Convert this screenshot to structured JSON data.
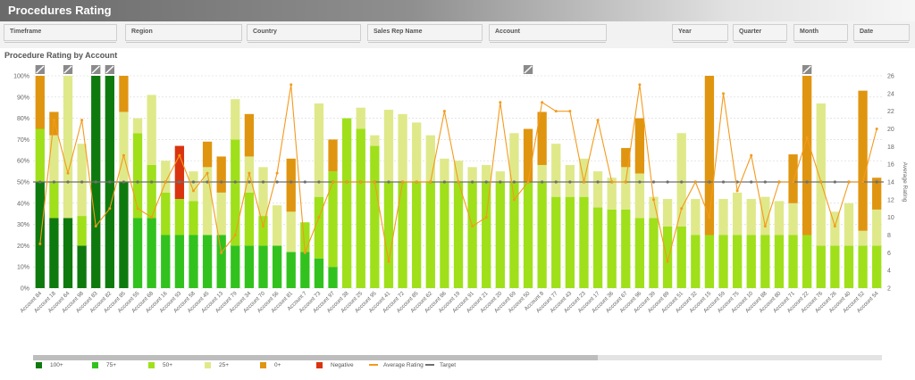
{
  "header": {
    "title": "Procedures Rating"
  },
  "filters": [
    "Timeframe",
    "Region",
    "Country",
    "Sales Rep Name",
    "Account",
    "Year",
    "Quarter",
    "Month",
    "Date"
  ],
  "chart_title": "Procedure Rating by Account",
  "colors": {
    "c100": "#0e7a0e",
    "c75": "#32c21e",
    "c50": "#9fe01a",
    "c25": "#dfe98a",
    "c0": "#e09510",
    "neg": "#d9340f",
    "avg": "#f49a1c",
    "target": "#6f6f6f",
    "grid": "#d6d6d6",
    "text": "#666666"
  },
  "chart_data": {
    "type": "bar",
    "stacked": true,
    "categories": [
      "Account 84",
      "Account 18",
      "Account 64",
      "Account 98",
      "Account 83",
      "Account 82",
      "Account 85",
      "Account 55",
      "Account 68",
      "Account 16",
      "Account 93",
      "Account 58",
      "Account 45",
      "Account 13",
      "Account 79",
      "Account 34",
      "Account 70",
      "Account 56",
      "Account 81",
      "Account 7",
      "Account 73",
      "Account 97",
      "Account 38",
      "Account 25",
      "Account 95",
      "Account 41",
      "Account 72",
      "Account 85",
      "Account 62",
      "Account 86",
      "Account 19",
      "Account 91",
      "Account 21",
      "Account 20",
      "Account 69",
      "Account 50",
      "Account 8",
      "Account 77",
      "Account 43",
      "Account 23",
      "Account 17",
      "Account 36",
      "Account 67",
      "Account 96",
      "Account 39",
      "Account 89",
      "Account 51",
      "Account 32",
      "Account 15",
      "Account 59",
      "Account 75",
      "Account 10",
      "Account 88",
      "Account 80",
      "Account 71",
      "Account 22",
      "Account 76",
      "Account 26",
      "Account 40",
      "Account 52",
      "Account 54"
    ],
    "series": [
      {
        "name": "100+",
        "values": [
          50,
          33,
          33,
          20,
          100,
          100,
          50,
          0,
          0,
          0,
          0,
          0,
          0,
          0,
          0,
          0,
          0,
          0,
          0,
          0,
          0,
          0,
          0,
          0,
          0,
          0,
          0,
          0,
          0,
          0,
          0,
          0,
          0,
          0,
          0,
          0,
          0,
          0,
          0,
          0,
          0,
          0,
          0,
          0,
          0,
          0,
          0,
          0,
          0,
          0,
          0,
          0,
          0,
          0,
          0,
          0,
          0,
          0,
          0,
          0,
          0
        ]
      },
      {
        "name": "75+",
        "values": [
          0,
          0,
          0,
          0,
          0,
          0,
          0,
          33,
          33,
          25,
          25,
          25,
          25,
          25,
          20,
          20,
          20,
          20,
          17,
          17,
          14,
          10,
          0,
          0,
          0,
          0,
          0,
          0,
          0,
          0,
          0,
          0,
          0,
          0,
          0,
          0,
          0,
          0,
          0,
          0,
          0,
          0,
          0,
          0,
          0,
          0,
          0,
          0,
          0,
          0,
          0,
          0,
          0,
          0,
          0,
          0,
          0,
          0,
          0,
          0,
          0
        ]
      },
      {
        "name": "50+",
        "values": [
          25,
          17,
          0,
          14,
          0,
          0,
          0,
          40,
          25,
          20,
          17,
          16,
          0,
          0,
          50,
          25,
          14,
          0,
          0,
          14,
          29,
          45,
          80,
          75,
          67,
          50,
          50,
          50,
          50,
          50,
          50,
          50,
          50,
          50,
          50,
          50,
          50,
          43,
          43,
          43,
          38,
          37,
          37,
          33,
          33,
          29,
          29,
          25,
          25,
          25,
          25,
          25,
          25,
          25,
          25,
          25,
          20,
          20,
          20,
          20,
          20
        ]
      },
      {
        "name": "25+",
        "values": [
          0,
          22,
          67,
          34,
          0,
          0,
          33,
          7,
          33,
          15,
          0,
          14,
          32,
          20,
          19,
          17,
          23,
          19,
          19,
          0,
          44,
          0,
          0,
          10,
          5,
          34,
          32,
          28,
          22,
          11,
          10,
          7,
          8,
          5,
          23,
          0,
          8,
          25,
          15,
          18,
          17,
          15,
          20,
          21,
          10,
          13,
          44,
          17,
          0,
          17,
          20,
          17,
          18,
          16,
          15,
          0,
          67,
          16,
          20,
          7,
          17
        ]
      },
      {
        "name": "0+",
        "values": [
          25,
          11,
          0,
          0,
          0,
          0,
          17,
          0,
          0,
          0,
          0,
          0,
          12,
          17,
          0,
          20,
          0,
          0,
          25,
          0,
          0,
          15,
          0,
          0,
          0,
          0,
          0,
          0,
          0,
          0,
          0,
          0,
          0,
          0,
          0,
          25,
          25,
          0,
          0,
          0,
          0,
          0,
          9,
          26,
          0,
          0,
          0,
          0,
          75,
          0,
          0,
          0,
          0,
          0,
          23,
          75,
          0,
          0,
          0,
          66,
          15
        ]
      },
      {
        "name": "Negative",
        "values": [
          0,
          0,
          0,
          0,
          0,
          0,
          0,
          0,
          0,
          0,
          25,
          0,
          0,
          0,
          0,
          0,
          0,
          0,
          0,
          0,
          0,
          0,
          0,
          0,
          0,
          0,
          0,
          0,
          0,
          0,
          0,
          0,
          0,
          0,
          0,
          0,
          0,
          0,
          0,
          0,
          0,
          0,
          0,
          0,
          0,
          0,
          0,
          0,
          0,
          0,
          0,
          0,
          0,
          0,
          0,
          0,
          0,
          0,
          0,
          0,
          0
        ]
      }
    ],
    "negative_offsets": [
      0,
      0,
      0,
      0,
      0,
      0,
      0,
      0,
      0,
      0,
      0,
      0,
      0,
      0,
      0,
      0,
      0,
      0,
      0,
      0,
      0,
      0,
      0,
      0,
      0,
      0,
      0,
      0,
      0,
      0,
      0,
      0,
      0,
      0,
      0,
      0,
      0,
      0,
      0,
      0,
      0,
      0,
      0,
      0,
      0,
      0,
      0,
      0,
      0,
      0,
      0,
      0,
      0,
      0,
      0,
      0,
      0,
      0,
      0,
      0,
      0
    ],
    "overflow_markers": [
      "Account 84",
      "Account 64",
      "Account 83",
      "Account 82",
      "Account 50",
      "Account 22"
    ],
    "average_rating": [
      7,
      21,
      15,
      21,
      9,
      11,
      17,
      11,
      10,
      14,
      17,
      13,
      15,
      6,
      8,
      15,
      9,
      15,
      25,
      6,
      10,
      14,
      14,
      14,
      14,
      5,
      14,
      14,
      14,
      22,
      14,
      9,
      10,
      23,
      12,
      14,
      23,
      22,
      22,
      14,
      21,
      14,
      14,
      25,
      12,
      5,
      11,
      14,
      10,
      24,
      13,
      17,
      9,
      14,
      14,
      19,
      14,
      9,
      14,
      14,
      20
    ],
    "target": 14,
    "y_left": {
      "ylim": [
        0,
        100
      ],
      "ticks": [
        "0%",
        "10%",
        "20%",
        "30%",
        "40%",
        "50%",
        "60%",
        "70%",
        "80%",
        "90%",
        "100%"
      ]
    },
    "y_right": {
      "label": "Average Rating",
      "ylim": [
        2,
        26
      ],
      "ticks": [
        2,
        4,
        6,
        8,
        10,
        12,
        14,
        16,
        18,
        20,
        22,
        24,
        26
      ]
    },
    "legend": [
      "100+",
      "75+",
      "50+",
      "25+",
      "0+",
      "Negative",
      "Average Rating",
      "Target"
    ],
    "legend_position": "bottom"
  }
}
